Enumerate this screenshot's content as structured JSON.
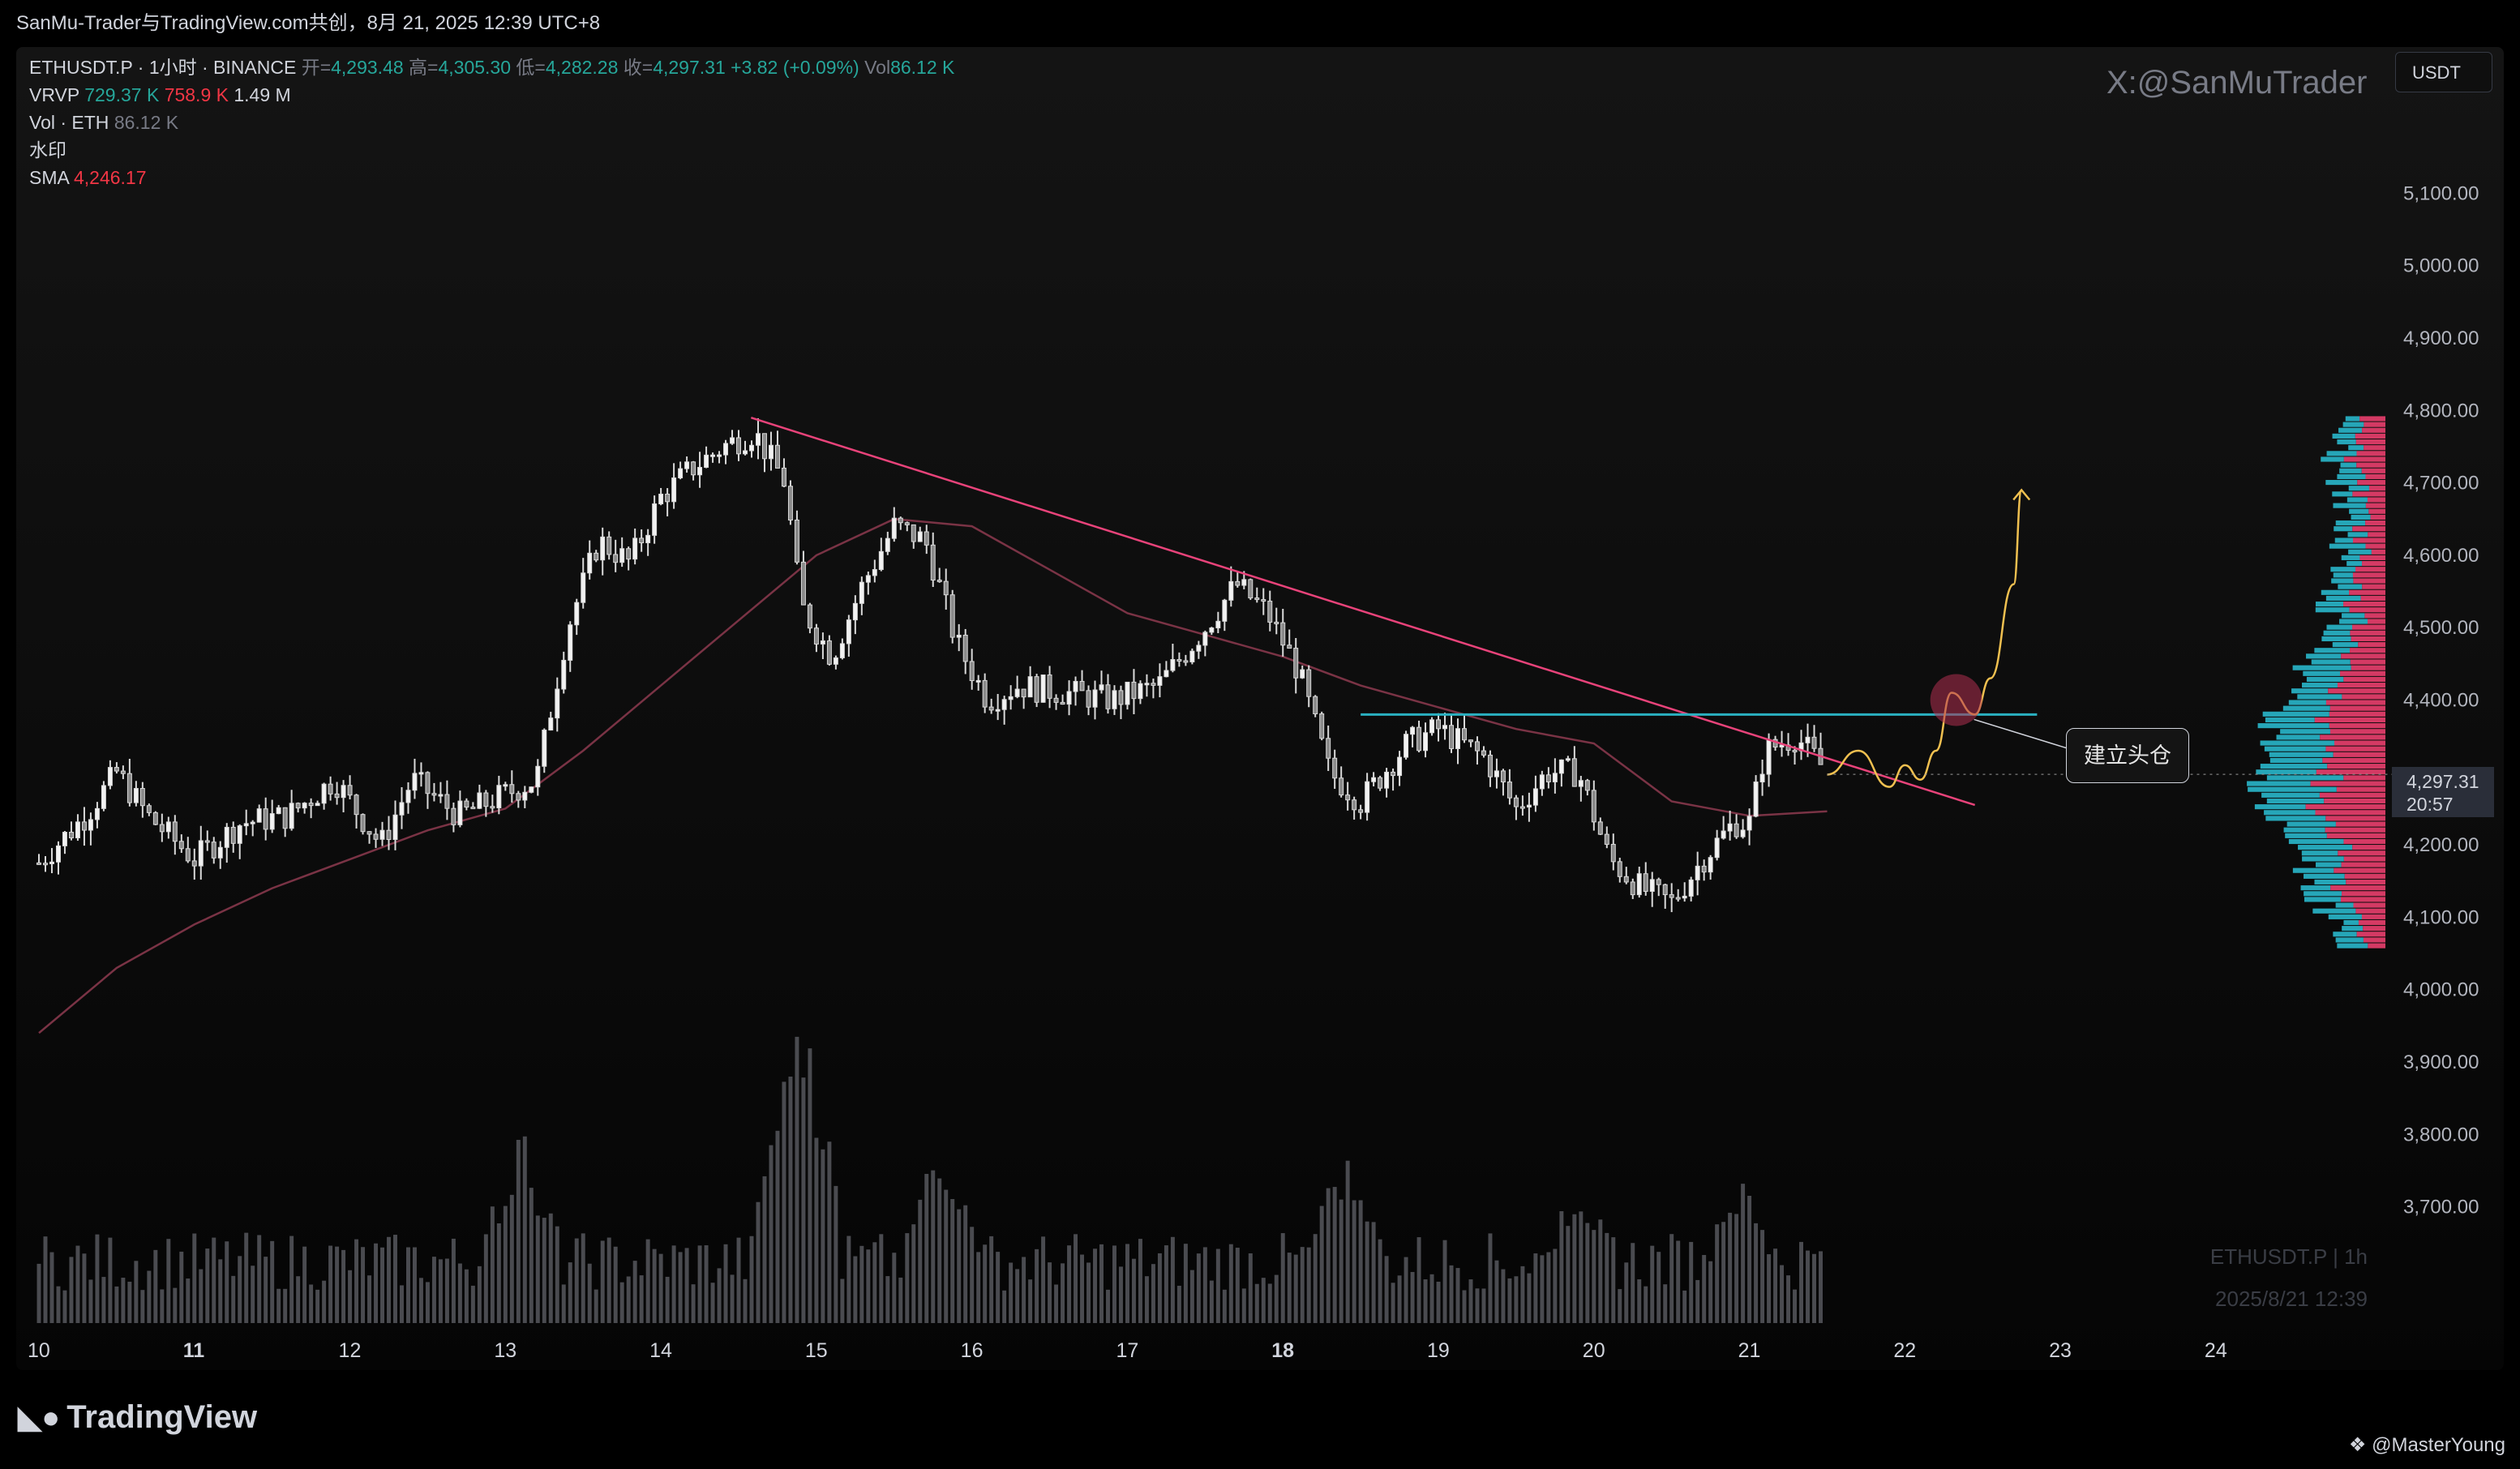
{
  "header": {
    "title": "SanMu-Trader与TradingView.com共创，8月 21, 2025 12:39 UTC+8"
  },
  "legend": {
    "symbol_line": "ETHUSDT.P · 1小时 · BINANCE",
    "open_label": "开=",
    "open_value": "4,293.48",
    "high_label": "高=",
    "high_value": "4,305.30",
    "low_label": "低=",
    "low_value": "4,282.28",
    "close_label": "收=",
    "close_value": "4,297.31",
    "change": "+3.82 (+0.09%)",
    "vol_label": "Vol",
    "vol_value": "86.12 K",
    "vrvp_label": "VRVP",
    "vrvp_up": "729.37 K",
    "vrvp_down": "758.9 K",
    "vrvp_total": "1.49 M",
    "volume_label": "Vol · ETH",
    "volume_value": "86.12 K",
    "watermark_label": "水印",
    "sma_label": "SMA",
    "sma_value": "4,246.17"
  },
  "watermark_top": "X:@SanMuTrader",
  "watermark_bottom": {
    "line1": "ETHUSDT.P | 1h",
    "line2": "2025/8/21 12:39"
  },
  "currency_button": "USDT",
  "last_price": {
    "price": "4,297.31",
    "countdown": "20:57"
  },
  "annotation": "建立头仓",
  "footer": {
    "logo": "TradingView",
    "logo_icon": "tradingview-logo-icon",
    "author": "@MasterYoung"
  },
  "colors": {
    "candle": "#d9d9d9",
    "trendline": "#e8437a",
    "sma": "#7a3345",
    "horizontal_level": "#2ab0c0",
    "projection": "#f0c050",
    "target_circle": "#b03050",
    "vrvp_up": "#26a6b8",
    "vrvp_down": "#d43a64",
    "volume": "#4a4b50"
  },
  "chart_data": {
    "type": "candlestick",
    "symbol": "ETHUSDT.P",
    "interval": "1小时",
    "y_ticks": [
      "5,100.00",
      "5,000.00",
      "4,900.00",
      "4,800.00",
      "4,700.00",
      "4,600.00",
      "4,500.00",
      "4,400.00",
      "4,200.00",
      "4,100.00",
      "4,000.00",
      "3,900.00",
      "3,800.00",
      "3,700.00"
    ],
    "y_tick_values": [
      5100,
      5000,
      4900,
      4800,
      4700,
      4600,
      4500,
      4400,
      4200,
      4100,
      4000,
      3900,
      3800,
      3700
    ],
    "ylim": [
      3620,
      5190
    ],
    "x_ticks": [
      "10",
      "11",
      "12",
      "13",
      "14",
      "15",
      "16",
      "17",
      "18",
      "19",
      "20",
      "21",
      "22",
      "23",
      "24"
    ],
    "x_bold": [
      "11",
      "18"
    ],
    "xlim": [
      10.0,
      24.6
    ],
    "price_path": [
      [
        10.0,
        4175
      ],
      [
        10.3,
        4240
      ],
      [
        10.5,
        4300
      ],
      [
        10.7,
        4240
      ],
      [
        11.0,
        4180
      ],
      [
        11.3,
        4230
      ],
      [
        11.6,
        4240
      ],
      [
        11.9,
        4290
      ],
      [
        12.2,
        4200
      ],
      [
        12.4,
        4290
      ],
      [
        12.7,
        4240
      ],
      [
        13.0,
        4270
      ],
      [
        13.2,
        4290
      ],
      [
        13.4,
        4500
      ],
      [
        13.6,
        4620
      ],
      [
        13.8,
        4590
      ],
      [
        14.0,
        4680
      ],
      [
        14.2,
        4720
      ],
      [
        14.4,
        4750
      ],
      [
        14.6,
        4770
      ],
      [
        14.8,
        4700
      ],
      [
        14.9,
        4530
      ],
      [
        15.1,
        4460
      ],
      [
        15.3,
        4560
      ],
      [
        15.5,
        4640
      ],
      [
        15.7,
        4620
      ],
      [
        15.9,
        4480
      ],
      [
        16.1,
        4400
      ],
      [
        16.3,
        4420
      ],
      [
        16.6,
        4410
      ],
      [
        16.9,
        4400
      ],
      [
        17.2,
        4420
      ],
      [
        17.5,
        4500
      ],
      [
        17.7,
        4560
      ],
      [
        17.9,
        4520
      ],
      [
        18.1,
        4440
      ],
      [
        18.3,
        4300
      ],
      [
        18.5,
        4260
      ],
      [
        18.8,
        4340
      ],
      [
        19.0,
        4360
      ],
      [
        19.3,
        4320
      ],
      [
        19.5,
        4250
      ],
      [
        19.7,
        4300
      ],
      [
        19.9,
        4300
      ],
      [
        20.1,
        4180
      ],
      [
        20.3,
        4140
      ],
      [
        20.5,
        4120
      ],
      [
        20.7,
        4180
      ],
      [
        20.9,
        4230
      ],
      [
        21.0,
        4230
      ],
      [
        21.1,
        4330
      ],
      [
        21.3,
        4350
      ],
      [
        21.5,
        4300
      ]
    ],
    "sma_path": [
      [
        10.0,
        3940
      ],
      [
        10.5,
        4030
      ],
      [
        11.0,
        4090
      ],
      [
        11.5,
        4140
      ],
      [
        12.0,
        4180
      ],
      [
        12.5,
        4220
      ],
      [
        13.0,
        4250
      ],
      [
        13.5,
        4330
      ],
      [
        14.0,
        4420
      ],
      [
        14.5,
        4510
      ],
      [
        15.0,
        4600
      ],
      [
        15.5,
        4650
      ],
      [
        16.0,
        4640
      ],
      [
        16.5,
        4580
      ],
      [
        17.0,
        4520
      ],
      [
        17.5,
        4490
      ],
      [
        18.0,
        4460
      ],
      [
        18.5,
        4420
      ],
      [
        19.0,
        4390
      ],
      [
        19.5,
        4360
      ],
      [
        20.0,
        4340
      ],
      [
        20.5,
        4260
      ],
      [
        21.0,
        4240
      ],
      [
        21.5,
        4246.17
      ]
    ],
    "trendline": {
      "from": [
        14.58,
        4790
      ],
      "to": [
        22.45,
        4255
      ]
    },
    "horizontal_level": {
      "price": 4380,
      "from": 18.5,
      "to": 22.85
    },
    "projection_path": [
      [
        21.5,
        4297
      ],
      [
        21.7,
        4330
      ],
      [
        21.9,
        4280
      ],
      [
        22.0,
        4310
      ],
      [
        22.1,
        4290
      ],
      [
        22.2,
        4330
      ],
      [
        22.3,
        4410
      ],
      [
        22.45,
        4380
      ],
      [
        22.55,
        4430
      ],
      [
        22.7,
        4560
      ],
      [
        22.75,
        4690
      ]
    ],
    "target_circle": {
      "x": 22.33,
      "price": 4400
    },
    "last_price": 4297.31,
    "volume": {
      "note": "relative hourly volume bars, normalized 0-1",
      "spikes": [
        [
          13.1,
          0.62
        ],
        [
          14.85,
          0.9
        ],
        [
          14.9,
          0.98
        ],
        [
          15.8,
          0.62
        ],
        [
          18.4,
          0.55
        ],
        [
          19.9,
          0.47
        ],
        [
          20.95,
          0.48
        ]
      ]
    },
    "vrvp_total_up": "729.37 K",
    "vrvp_total_down": "758.9 K"
  }
}
